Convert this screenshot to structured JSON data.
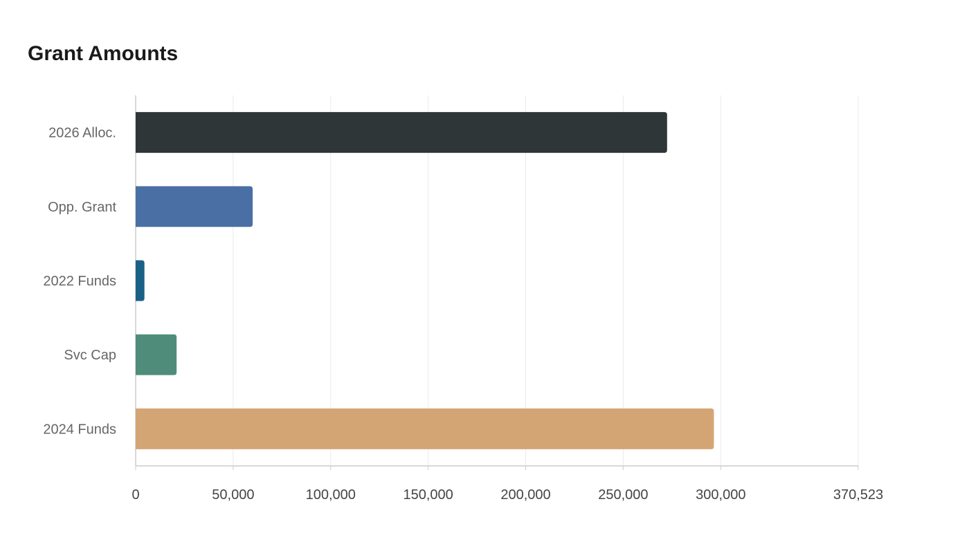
{
  "chart_data": {
    "type": "bar",
    "orientation": "horizontal",
    "title": "Grant Amounts",
    "xlabel": "",
    "ylabel": "",
    "categories": [
      "2026 Alloc.",
      "Opp. Grant",
      "2022 Funds",
      "Svc Cap",
      "2024 Funds"
    ],
    "values": [
      272500,
      60000,
      4500,
      21000,
      296500
    ],
    "colors": [
      "#2e3638",
      "#4a6fa5",
      "#1a6187",
      "#4f8c7a",
      "#d4a574"
    ],
    "xlim": [
      0,
      370523
    ],
    "x_ticks": [
      0,
      50000,
      100000,
      150000,
      200000,
      250000,
      300000,
      370523
    ],
    "x_tick_labels": [
      "0",
      "50,000",
      "100,000",
      "150,000",
      "200,000",
      "250,000",
      "300,000",
      "370,523"
    ],
    "grid": true,
    "legend": "none"
  }
}
